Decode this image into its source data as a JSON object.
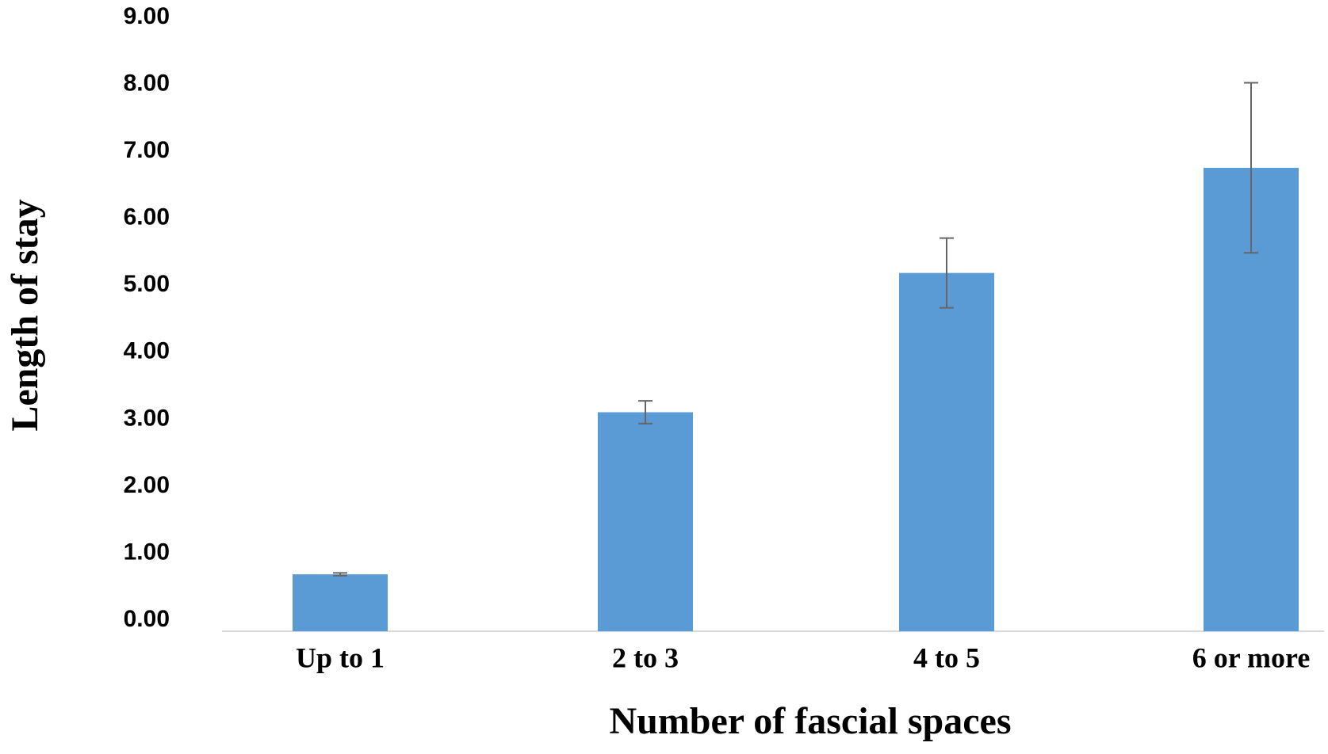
{
  "chart_data": {
    "type": "bar",
    "x_label": "Number of fascial spaces",
    "y_label": "Length of stay",
    "categories": [
      "Up to 1",
      "2 to 3",
      "4 to 5",
      "6 or more"
    ],
    "values": [
      0.85,
      3.27,
      5.35,
      6.92
    ],
    "errors": [
      0.02,
      0.17,
      0.52,
      1.27
    ],
    "color": "#5b9bd5",
    "error_color": "#666666",
    "ylim": [
      0,
      9
    ],
    "yticks": [
      {
        "value": 0,
        "label": "0.00"
      },
      {
        "value": 1,
        "label": "1.00"
      },
      {
        "value": 2,
        "label": "2.00"
      },
      {
        "value": 3,
        "label": "3.00"
      },
      {
        "value": 4,
        "label": "4.00"
      },
      {
        "value": 5,
        "label": "5.00"
      },
      {
        "value": 6,
        "label": "6.00"
      },
      {
        "value": 7,
        "label": "7.00"
      },
      {
        "value": 8,
        "label": "8.00"
      },
      {
        "value": 9,
        "label": "9.00"
      }
    ],
    "grid": false
  }
}
